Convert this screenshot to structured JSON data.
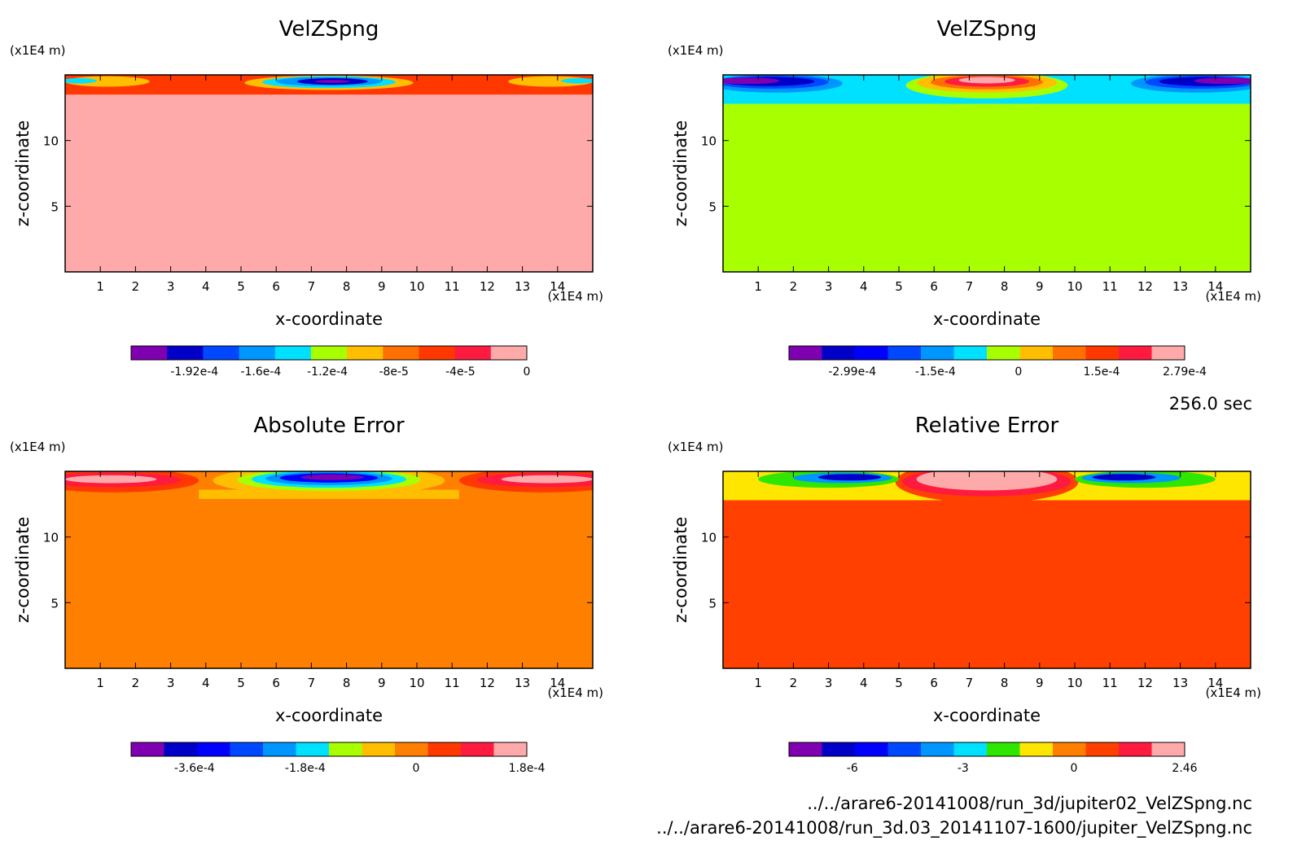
{
  "time_label": "256.0 sec",
  "footer_lines": [
    "../../arare6-20141008/run_3d/jupiter02_VelZSpng.nc",
    "../../arare6-20141008/run_3d.03_20141107-1600/jupiter_VelZSpng.nc"
  ],
  "chart_data": [
    {
      "type": "heatmap",
      "title": "VelZSpng",
      "xlabel": "x-coordinate",
      "ylabel": "z-coordinate",
      "x_unit": "(x1E4 m)",
      "z_unit": "(x1E4 m)",
      "xlim": [
        0,
        15
      ],
      "ylim": [
        0,
        15
      ],
      "x_ticks": [
        1,
        2,
        3,
        4,
        5,
        6,
        7,
        8,
        9,
        10,
        11,
        12,
        13,
        14
      ],
      "y_ticks": [
        5,
        10
      ],
      "background_color": "#ffaaaa",
      "colorbar": {
        "colors": [
          "#7f00b0",
          "#0000c8",
          "#0048ff",
          "#0096ff",
          "#00e0ff",
          "#a8ff00",
          "#ffbf00",
          "#ff7000",
          "#ff3800",
          "#ff1a40",
          "#ffaaaa"
        ],
        "tick_labels": [
          "-1.92e-4",
          "-1.6e-4",
          "-1.2e-4",
          "-8e-5",
          "-4e-5",
          "0"
        ]
      },
      "features": [
        {
          "shape": "band",
          "x": [
            0,
            15
          ],
          "z": [
            13.5,
            15
          ],
          "color": "#ff3800"
        },
        {
          "shape": "ellipse",
          "cx": 1.2,
          "cz": 14.5,
          "rx": 1.2,
          "rz": 0.4,
          "color": "#ffbf00"
        },
        {
          "shape": "ellipse",
          "cx": 0.4,
          "cz": 14.55,
          "rx": 0.5,
          "rz": 0.2,
          "color": "#00e0ff"
        },
        {
          "shape": "ellipse",
          "cx": 13.8,
          "cz": 14.5,
          "rx": 1.2,
          "rz": 0.4,
          "color": "#ffbf00"
        },
        {
          "shape": "ellipse",
          "cx": 14.6,
          "cz": 14.55,
          "rx": 0.5,
          "rz": 0.2,
          "color": "#00e0ff"
        },
        {
          "shape": "ellipse",
          "cx": 7.5,
          "cz": 14.4,
          "rx": 2.4,
          "rz": 0.55,
          "color": "#ffbf00"
        },
        {
          "shape": "ellipse",
          "cx": 7.5,
          "cz": 14.45,
          "rx": 1.9,
          "rz": 0.45,
          "color": "#00e0ff"
        },
        {
          "shape": "ellipse",
          "cx": 7.5,
          "cz": 14.5,
          "rx": 1.5,
          "rz": 0.35,
          "color": "#0096ff"
        },
        {
          "shape": "ellipse",
          "cx": 7.6,
          "cz": 14.5,
          "rx": 1.0,
          "rz": 0.25,
          "color": "#0000c8"
        },
        {
          "shape": "ellipse",
          "cx": 7.6,
          "cz": 14.5,
          "rx": 0.5,
          "rz": 0.12,
          "color": "#7f00b0"
        }
      ]
    },
    {
      "type": "heatmap",
      "title": "VelZSpng",
      "xlabel": "x-coordinate",
      "ylabel": "z-coordinate",
      "x_unit": "(x1E4 m)",
      "z_unit": "(x1E4 m)",
      "xlim": [
        0,
        15
      ],
      "ylim": [
        0,
        15
      ],
      "x_ticks": [
        1,
        2,
        3,
        4,
        5,
        6,
        7,
        8,
        9,
        10,
        11,
        12,
        13,
        14
      ],
      "y_ticks": [
        5,
        10
      ],
      "background_color": "#a8ff00",
      "colorbar": {
        "colors": [
          "#7f00b0",
          "#0000c8",
          "#0000ff",
          "#0048ff",
          "#0096ff",
          "#00e0ff",
          "#a8ff00",
          "#ffbf00",
          "#ff7000",
          "#ff3800",
          "#ff1a40",
          "#ffaaaa"
        ],
        "tick_labels": [
          "-2.99e-4",
          "-1.5e-4",
          "0",
          "1.5e-4",
          "2.79e-4"
        ]
      },
      "features": [
        {
          "shape": "band",
          "x": [
            0,
            15
          ],
          "z": [
            12.8,
            15
          ],
          "color": "#00e0ff"
        },
        {
          "shape": "ellipse",
          "cx": 7.5,
          "cz": 14.2,
          "rx": 2.3,
          "rz": 1.0,
          "color": "#a8ff00"
        },
        {
          "shape": "ellipse",
          "cx": 7.5,
          "cz": 14.4,
          "rx": 2.0,
          "rz": 0.75,
          "color": "#ffbf00"
        },
        {
          "shape": "ellipse",
          "cx": 7.5,
          "cz": 14.45,
          "rx": 1.6,
          "rz": 0.55,
          "color": "#ff7000"
        },
        {
          "shape": "ellipse",
          "cx": 7.5,
          "cz": 14.5,
          "rx": 1.2,
          "rz": 0.4,
          "color": "#ff1a40"
        },
        {
          "shape": "ellipse",
          "cx": 7.5,
          "cz": 14.6,
          "rx": 0.8,
          "rz": 0.25,
          "color": "#ffaaaa"
        },
        {
          "shape": "ellipse",
          "cx": 1.5,
          "cz": 14.35,
          "rx": 1.9,
          "rz": 0.7,
          "color": "#0096ff"
        },
        {
          "shape": "ellipse",
          "cx": 1.4,
          "cz": 14.45,
          "rx": 1.6,
          "rz": 0.5,
          "color": "#0048ff"
        },
        {
          "shape": "ellipse",
          "cx": 1.3,
          "cz": 14.5,
          "rx": 1.3,
          "rz": 0.35,
          "color": "#0000c8"
        },
        {
          "shape": "ellipse",
          "cx": 0.7,
          "cz": 14.55,
          "rx": 0.9,
          "rz": 0.25,
          "color": "#7f00b0"
        },
        {
          "shape": "ellipse",
          "cx": 13.5,
          "cz": 14.35,
          "rx": 1.9,
          "rz": 0.7,
          "color": "#0096ff"
        },
        {
          "shape": "ellipse",
          "cx": 13.6,
          "cz": 14.45,
          "rx": 1.6,
          "rz": 0.5,
          "color": "#0048ff"
        },
        {
          "shape": "ellipse",
          "cx": 13.7,
          "cz": 14.5,
          "rx": 1.3,
          "rz": 0.35,
          "color": "#0000c8"
        },
        {
          "shape": "ellipse",
          "cx": 14.3,
          "cz": 14.55,
          "rx": 0.9,
          "rz": 0.25,
          "color": "#7f00b0"
        }
      ]
    },
    {
      "type": "heatmap",
      "title": "Absolute Error",
      "xlabel": "x-coordinate",
      "ylabel": "z-coordinate",
      "x_unit": "(x1E4 m)",
      "z_unit": "(x1E4 m)",
      "xlim": [
        0,
        15
      ],
      "ylim": [
        0,
        15
      ],
      "x_ticks": [
        1,
        2,
        3,
        4,
        5,
        6,
        7,
        8,
        9,
        10,
        11,
        12,
        13,
        14
      ],
      "y_ticks": [
        5,
        10
      ],
      "background_color": "#ff7f00",
      "colorbar": {
        "colors": [
          "#7f00b0",
          "#0000c8",
          "#0000ff",
          "#0048ff",
          "#0096ff",
          "#00e0ff",
          "#a8ff00",
          "#ffbf00",
          "#ff7f00",
          "#ff3800",
          "#ff1a40",
          "#ffaaaa"
        ],
        "tick_labels": [
          "-3.6e-4",
          "-1.8e-4",
          "0",
          "1.8e-4"
        ]
      },
      "features": [
        {
          "shape": "band",
          "x": [
            3.8,
            11.2
          ],
          "z": [
            12.9,
            13.6
          ],
          "color": "#ffbf00"
        },
        {
          "shape": "ellipse",
          "cx": 7.5,
          "cz": 14.3,
          "rx": 3.3,
          "rz": 1.1,
          "color": "#ffbf00"
        },
        {
          "shape": "ellipse",
          "cx": 7.5,
          "cz": 14.35,
          "rx": 2.6,
          "rz": 0.85,
          "color": "#a8ff00"
        },
        {
          "shape": "ellipse",
          "cx": 7.5,
          "cz": 14.4,
          "rx": 2.2,
          "rz": 0.65,
          "color": "#00e0ff"
        },
        {
          "shape": "ellipse",
          "cx": 7.5,
          "cz": 14.45,
          "rx": 1.8,
          "rz": 0.5,
          "color": "#0096ff"
        },
        {
          "shape": "ellipse",
          "cx": 7.5,
          "cz": 14.5,
          "rx": 1.4,
          "rz": 0.35,
          "color": "#0000ff"
        },
        {
          "shape": "ellipse",
          "cx": 7.6,
          "cz": 14.55,
          "rx": 0.9,
          "rz": 0.22,
          "color": "#7f00b0"
        },
        {
          "shape": "ellipse",
          "cx": 1.4,
          "cz": 14.3,
          "rx": 2.4,
          "rz": 0.9,
          "color": "#ff3800"
        },
        {
          "shape": "ellipse",
          "cx": 1.3,
          "cz": 14.35,
          "rx": 2.0,
          "rz": 0.55,
          "color": "#ff1a40"
        },
        {
          "shape": "ellipse",
          "cx": 1.3,
          "cz": 14.4,
          "rx": 1.3,
          "rz": 0.3,
          "color": "#ffaaaa"
        },
        {
          "shape": "ellipse",
          "cx": 13.6,
          "cz": 14.3,
          "rx": 2.4,
          "rz": 0.9,
          "color": "#ff3800"
        },
        {
          "shape": "ellipse",
          "cx": 13.7,
          "cz": 14.35,
          "rx": 2.0,
          "rz": 0.55,
          "color": "#ff1a40"
        },
        {
          "shape": "ellipse",
          "cx": 13.7,
          "cz": 14.4,
          "rx": 1.3,
          "rz": 0.3,
          "color": "#ffaaaa"
        }
      ]
    },
    {
      "type": "heatmap",
      "title": "Relative Error",
      "xlabel": "x-coordinate",
      "ylabel": "z-coordinate",
      "x_unit": "(x1E4 m)",
      "z_unit": "(x1E4 m)",
      "xlim": [
        0,
        15
      ],
      "ylim": [
        0,
        15
      ],
      "x_ticks": [
        1,
        2,
        3,
        4,
        5,
        6,
        7,
        8,
        9,
        10,
        11,
        12,
        13,
        14
      ],
      "y_ticks": [
        5,
        10
      ],
      "background_color": "#ff4000",
      "colorbar": {
        "colors": [
          "#7f00b0",
          "#0000c8",
          "#0000ff",
          "#0048ff",
          "#0096ff",
          "#00e0ff",
          "#2ee600",
          "#ffe600",
          "#ff7f00",
          "#ff4000",
          "#ff1a40",
          "#ffaaaa"
        ],
        "tick_labels": [
          "-6",
          "-3",
          "0",
          "2.46"
        ]
      },
      "features": [
        {
          "shape": "band",
          "x": [
            0,
            15
          ],
          "z": [
            12.8,
            15
          ],
          "color": "#ffe600"
        },
        {
          "shape": "ellipse",
          "cx": 7.5,
          "cz": 14.2,
          "rx": 2.6,
          "rz": 1.6,
          "color": "#ff4000"
        },
        {
          "shape": "ellipse",
          "cx": 7.5,
          "cz": 14.2,
          "rx": 2.4,
          "rz": 1.1,
          "color": "#ff1a40"
        },
        {
          "shape": "ellipse",
          "cx": 7.5,
          "cz": 14.4,
          "rx": 2.0,
          "rz": 0.85,
          "color": "#ffaaaa"
        },
        {
          "shape": "ellipse",
          "cx": 3.0,
          "cz": 14.4,
          "rx": 2.0,
          "rz": 0.65,
          "color": "#2ee600"
        },
        {
          "shape": "ellipse",
          "cx": 3.4,
          "cz": 14.5,
          "rx": 1.4,
          "rz": 0.4,
          "color": "#0096ff"
        },
        {
          "shape": "ellipse",
          "cx": 3.6,
          "cz": 14.55,
          "rx": 0.9,
          "rz": 0.25,
          "color": "#0000c8"
        },
        {
          "shape": "ellipse",
          "cx": 12.0,
          "cz": 14.4,
          "rx": 2.0,
          "rz": 0.65,
          "color": "#2ee600"
        },
        {
          "shape": "ellipse",
          "cx": 11.6,
          "cz": 14.5,
          "rx": 1.4,
          "rz": 0.4,
          "color": "#0096ff"
        },
        {
          "shape": "ellipse",
          "cx": 11.4,
          "cz": 14.55,
          "rx": 0.9,
          "rz": 0.25,
          "color": "#0000c8"
        }
      ]
    }
  ]
}
